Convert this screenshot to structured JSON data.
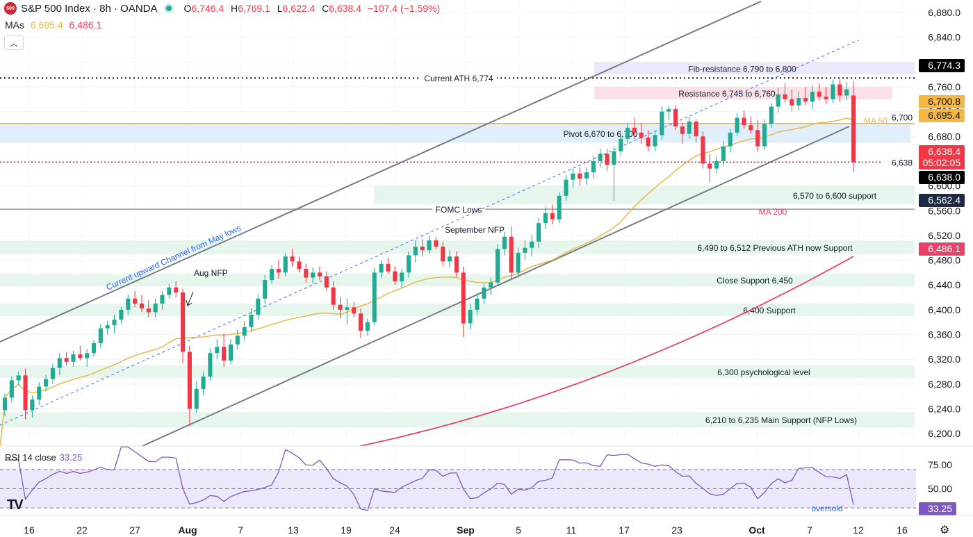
{
  "header": {
    "logo_text": "500",
    "title": "S&P 500 Index · 8h · OANDA",
    "open_label": "O",
    "open": "6,746.4",
    "high_label": "H",
    "high": "6,769.1",
    "low_label": "L",
    "low": "6,622.4",
    "close_label": "C",
    "close": "6,638.4",
    "change": "−107.4 (−1.59%)",
    "mas_label": "MAs",
    "ma50_value": "6,695.4",
    "ma200_value": "6,486.1",
    "collapse_icon": "chevron-up-icon"
  },
  "rsi_header": {
    "label": "RSI 14 close",
    "value": "33.25"
  },
  "colors": {
    "up": "#22ab94",
    "down": "#f23645",
    "ma50": "#e8b84a",
    "ma200": "#e8426a",
    "rsi": "#7e57c2",
    "zone_green": "#e6f6ec",
    "zone_pink": "#fbe0e7",
    "zone_purple": "#ece8fb",
    "zone_blue": "#e1eefc"
  },
  "chart_data": {
    "type": "candlestick",
    "timeframe": "8h",
    "y_range": [
      6180,
      6880
    ],
    "price_ticks": [
      "6,200.0",
      "6,240.0",
      "6,280.0",
      "6,320.0",
      "6,360.0",
      "6,400.0",
      "6,440.0",
      "6,480.0",
      "6,520.0",
      "6,560.0",
      "6,600.0",
      "6,640.0",
      "6,680.0",
      "6,720.0",
      "6,760.0",
      "6,800.0",
      "6,840.0",
      "6,880.0"
    ],
    "x_ticks": [
      "16",
      "22",
      "27",
      "Aug",
      "7",
      "13",
      "19",
      "24",
      "Sep",
      "5",
      "11",
      "17",
      "23",
      "Oct",
      "7",
      "12",
      "16"
    ],
    "candles_start": 6238,
    "candles_ohlc": [
      [
        6238,
        6265,
        6228,
        6258
      ],
      [
        6258,
        6292,
        6250,
        6286
      ],
      [
        6286,
        6300,
        6278,
        6294
      ],
      [
        6294,
        6305,
        6223,
        6238
      ],
      [
        6238,
        6262,
        6226,
        6255
      ],
      [
        6255,
        6283,
        6246,
        6276
      ],
      [
        6276,
        6295,
        6268,
        6288
      ],
      [
        6288,
        6313,
        6280,
        6306
      ],
      [
        6306,
        6330,
        6294,
        6322
      ],
      [
        6322,
        6332,
        6310,
        6316
      ],
      [
        6316,
        6334,
        6308,
        6328
      ],
      [
        6328,
        6342,
        6318,
        6322
      ],
      [
        6322,
        6336,
        6308,
        6330
      ],
      [
        6330,
        6351,
        6324,
        6346
      ],
      [
        6346,
        6377,
        6338,
        6370
      ],
      [
        6370,
        6382,
        6360,
        6375
      ],
      [
        6375,
        6392,
        6362,
        6384
      ],
      [
        6384,
        6405,
        6378,
        6400
      ],
      [
        6400,
        6425,
        6392,
        6418
      ],
      [
        6418,
        6430,
        6404,
        6410
      ],
      [
        6410,
        6424,
        6396,
        6402
      ],
      [
        6402,
        6416,
        6388,
        6396
      ],
      [
        6396,
        6418,
        6388,
        6410
      ],
      [
        6410,
        6430,
        6400,
        6424
      ],
      [
        6424,
        6442,
        6418,
        6436
      ],
      [
        6436,
        6446,
        6420,
        6428
      ],
      [
        6428,
        6434,
        6314,
        6332
      ],
      [
        6332,
        6342,
        6212,
        6240
      ],
      [
        6240,
        6285,
        6234,
        6272
      ],
      [
        6272,
        6300,
        6262,
        6292
      ],
      [
        6292,
        6338,
        6286,
        6330
      ],
      [
        6330,
        6352,
        6320,
        6340
      ],
      [
        6340,
        6362,
        6308,
        6318
      ],
      [
        6318,
        6352,
        6312,
        6344
      ],
      [
        6344,
        6368,
        6336,
        6358
      ],
      [
        6358,
        6382,
        6350,
        6372
      ],
      [
        6372,
        6402,
        6364,
        6392
      ],
      [
        6392,
        6426,
        6384,
        6418
      ],
      [
        6418,
        6456,
        6410,
        6448
      ],
      [
        6448,
        6472,
        6442,
        6466
      ],
      [
        6466,
        6480,
        6450,
        6460
      ],
      [
        6460,
        6492,
        6454,
        6486
      ],
      [
        6486,
        6498,
        6470,
        6478
      ],
      [
        6478,
        6486,
        6460,
        6466
      ],
      [
        6466,
        6474,
        6444,
        6452
      ],
      [
        6452,
        6468,
        6442,
        6460
      ],
      [
        6460,
        6470,
        6448,
        6454
      ],
      [
        6454,
        6462,
        6430,
        6436
      ],
      [
        6436,
        6446,
        6400,
        6408
      ],
      [
        6408,
        6420,
        6386,
        6400
      ],
      [
        6400,
        6418,
        6376,
        6404
      ],
      [
        6404,
        6412,
        6388,
        6394
      ],
      [
        6394,
        6402,
        6354,
        6366
      ],
      [
        6366,
        6386,
        6358,
        6380
      ],
      [
        6380,
        6468,
        6376,
        6460
      ],
      [
        6460,
        6480,
        6452,
        6474
      ],
      [
        6474,
        6484,
        6458,
        6462
      ],
      [
        6462,
        6470,
        6440,
        6446
      ],
      [
        6446,
        6466,
        6436,
        6460
      ],
      [
        6460,
        6494,
        6452,
        6488
      ],
      [
        6488,
        6512,
        6476,
        6502
      ],
      [
        6502,
        6514,
        6486,
        6496
      ],
      [
        6496,
        6520,
        6490,
        6512
      ],
      [
        6512,
        6518,
        6498,
        6502
      ],
      [
        6502,
        6510,
        6470,
        6478
      ],
      [
        6478,
        6496,
        6468,
        6486
      ],
      [
        6486,
        6494,
        6452,
        6460
      ],
      [
        6460,
        6470,
        6356,
        6378
      ],
      [
        6378,
        6410,
        6368,
        6400
      ],
      [
        6400,
        6428,
        6392,
        6418
      ],
      [
        6418,
        6442,
        6410,
        6436
      ],
      [
        6436,
        6452,
        6424,
        6444
      ],
      [
        6444,
        6506,
        6438,
        6498
      ],
      [
        6498,
        6526,
        6488,
        6518
      ],
      [
        6518,
        6534,
        6450,
        6460
      ],
      [
        6460,
        6500,
        6452,
        6492
      ],
      [
        6492,
        6512,
        6480,
        6500
      ],
      [
        6500,
        6520,
        6486,
        6510
      ],
      [
        6510,
        6548,
        6500,
        6540
      ],
      [
        6540,
        6566,
        6530,
        6556
      ],
      [
        6556,
        6570,
        6538,
        6546
      ],
      [
        6546,
        6590,
        6540,
        6584
      ],
      [
        6584,
        6618,
        6576,
        6610
      ],
      [
        6610,
        6628,
        6598,
        6620
      ],
      [
        6620,
        6630,
        6600,
        6612
      ],
      [
        6612,
        6630,
        6602,
        6622
      ],
      [
        6622,
        6648,
        6612,
        6640
      ],
      [
        6640,
        6660,
        6630,
        6652
      ],
      [
        6652,
        6660,
        6624,
        6634
      ],
      [
        6634,
        6664,
        6576,
        6656
      ],
      [
        6656,
        6682,
        6648,
        6676
      ],
      [
        6676,
        6702,
        6668,
        6694
      ],
      [
        6694,
        6710,
        6676,
        6686
      ],
      [
        6686,
        6702,
        6668,
        6678
      ],
      [
        6678,
        6690,
        6656,
        6664
      ],
      [
        6664,
        6690,
        6656,
        6682
      ],
      [
        6682,
        6728,
        6674,
        6720
      ],
      [
        6720,
        6730,
        6706,
        6724
      ],
      [
        6724,
        6730,
        6690,
        6696
      ],
      [
        6696,
        6702,
        6668,
        6684
      ],
      [
        6684,
        6712,
        6676,
        6704
      ],
      [
        6704,
        6708,
        6670,
        6680
      ],
      [
        6680,
        6688,
        6628,
        6636
      ],
      [
        6636,
        6652,
        6606,
        6628
      ],
      [
        6628,
        6648,
        6620,
        6640
      ],
      [
        6640,
        6672,
        6632,
        6664
      ],
      [
        6664,
        6692,
        6654,
        6686
      ],
      [
        6686,
        6718,
        6680,
        6710
      ],
      [
        6710,
        6722,
        6692,
        6698
      ],
      [
        6698,
        6712,
        6684,
        6690
      ],
      [
        6690,
        6706,
        6656,
        6664
      ],
      [
        6664,
        6708,
        6658,
        6700
      ],
      [
        6700,
        6734,
        6694,
        6728
      ],
      [
        6728,
        6758,
        6718,
        6748
      ],
      [
        6748,
        6766,
        6734,
        6740
      ],
      [
        6740,
        6756,
        6720,
        6730
      ],
      [
        6730,
        6752,
        6722,
        6742
      ],
      [
        6742,
        6760,
        6730,
        6736
      ],
      [
        6736,
        6762,
        6724,
        6752
      ],
      [
        6752,
        6766,
        6738,
        6744
      ],
      [
        6744,
        6760,
        6732,
        6740
      ],
      [
        6740,
        6772,
        6734,
        6764
      ],
      [
        6764,
        6772,
        6736,
        6746
      ],
      [
        6746,
        6768,
        6738,
        6756
      ],
      [
        6746,
        6769,
        6622,
        6638
      ]
    ],
    "ma50": {
      "name": "MA 50",
      "last": 6695.4
    },
    "ma200": {
      "name": "MA 200",
      "last": 6486.1
    },
    "zones": [
      {
        "label": "Fib-resistance 6,790 to 6,800",
        "low": 6790,
        "high": 6800,
        "color": "purple"
      },
      {
        "label": "Resistance 6,745 to 6,760",
        "low": 6745,
        "high": 6760,
        "color": "pink"
      },
      {
        "label": "Pivot 6,670 to 6,700",
        "low": 6670,
        "high": 6700,
        "color": "blue"
      },
      {
        "label": "6,570 to 6,600 support",
        "low": 6570,
        "high": 6600,
        "color": "green"
      },
      {
        "label": "6,490 to 6,512 Previous ATH now Support",
        "low": 6490,
        "high": 6512,
        "color": "green"
      },
      {
        "label": "Close Support 6,450",
        "low": 6438,
        "high": 6458,
        "color": "green"
      },
      {
        "label": "6,400 Support",
        "low": 6390,
        "high": 6410,
        "color": "green"
      },
      {
        "label": "6,300 psychological level",
        "low": 6290,
        "high": 6310,
        "color": "green"
      },
      {
        "label": "6,210 to 6,235 Main Support (NFP Lows)",
        "low": 6210,
        "high": 6235,
        "color": "green"
      }
    ],
    "lines": [
      {
        "label": "Current ATH 6,774",
        "value": 6774.3,
        "style": "dotted"
      },
      {
        "label": "FOMC Lows",
        "value": 6562.4,
        "style": "solid"
      },
      {
        "label": "6,700",
        "value": 6700.8,
        "style": "solid-gold"
      },
      {
        "label": "6,638",
        "value": 6638.4,
        "style": "dotted-red"
      }
    ],
    "annotations": [
      "Current upward Channel from May lows",
      "Aug NFP",
      "September NFP",
      "MA 50",
      "MA 200"
    ],
    "price_labels": [
      {
        "text": "6,774.3",
        "value": 6774.3,
        "bg": "#000000",
        "fg": "#ffffff"
      },
      {
        "text": "6,700.8",
        "value": 6700.8,
        "bg": "#f5b642",
        "fg": "#131722"
      },
      {
        "text": "6,695.4",
        "value": 6695.4,
        "bg": "#f5b642",
        "fg": "#131722"
      },
      {
        "text": "6,638.4",
        "value": 6638.4,
        "bg": "#f23645",
        "fg": "#ffffff"
      },
      {
        "text": "05:02:05",
        "value": 6638.4,
        "bg": "#f23645",
        "fg": "#ffffff"
      },
      {
        "text": "6,638.0",
        "value": 6638.0,
        "bg": "#000000",
        "fg": "#ffffff"
      },
      {
        "text": "6,562.4",
        "value": 6562.4,
        "bg": "#1e2a44",
        "fg": "#ffffff"
      },
      {
        "text": "6,486.1",
        "value": 6486.1,
        "bg": "#e8426a",
        "fg": "#ffffff"
      }
    ],
    "rsi": {
      "name": "RSI 14 close",
      "ticks": [
        "75.00",
        "50.00"
      ],
      "last": 33.25,
      "last_label": "33.25",
      "overbought": 70,
      "oversold_level": 30,
      "oversold_label": "oversold"
    },
    "x_axis_label": ""
  }
}
